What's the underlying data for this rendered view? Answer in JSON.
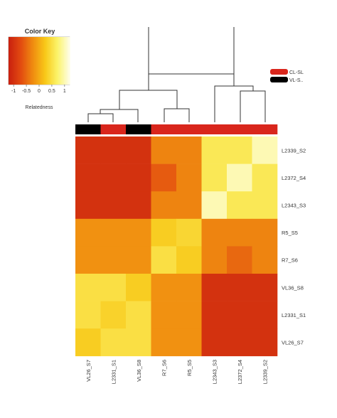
{
  "color_key": {
    "title": "Color Key",
    "xlabel": "Relatedness",
    "ticks": [
      "-1",
      "-0.5",
      "0",
      "0.5",
      "1"
    ],
    "ticks_values": [
      -1,
      -0.5,
      0,
      0.5,
      1
    ],
    "range": [
      -1.2,
      1.2
    ],
    "colors": [
      "#c8200f",
      "#e24a10",
      "#f08c10",
      "#f8c818",
      "#fbf36a",
      "#fefde8"
    ]
  },
  "legend": {
    "position": "top-right",
    "items": [
      {
        "label": "CL-SL",
        "color": "#d9261c"
      },
      {
        "label": "VL-S..",
        "color": "#000000"
      }
    ]
  },
  "chart_data": {
    "type": "heatmap",
    "title": "",
    "xlabel": "",
    "ylabel": "",
    "columns": [
      "VL26_S7",
      "L2331_S1",
      "VL36_S8",
      "R7_S6",
      "R5_S5",
      "L2343_S3",
      "L2372_S4",
      "L2339_S2"
    ],
    "rows": [
      "L2339_S2",
      "L2372_S4",
      "L2343_S3",
      "R5_S5",
      "R7_S6",
      "VL36_S8",
      "L2331_S1",
      "VL26_S7"
    ],
    "column_groups": [
      "VL-S..",
      "CL-SL",
      "VL-S..",
      "CL-SL",
      "CL-SL",
      "CL-SL",
      "CL-SL",
      "CL-SL"
    ],
    "values": [
      [
        -1.0,
        -1.0,
        -1.0,
        -0.3,
        -0.3,
        0.6,
        0.6,
        1.0
      ],
      [
        -1.0,
        -1.0,
        -1.0,
        -0.6,
        -0.3,
        0.6,
        1.0,
        0.6
      ],
      [
        -1.0,
        -1.0,
        -1.0,
        -0.3,
        -0.3,
        1.0,
        0.6,
        0.6
      ],
      [
        -0.2,
        -0.2,
        -0.2,
        0.3,
        0.4,
        -0.3,
        -0.3,
        -0.3
      ],
      [
        -0.2,
        -0.2,
        -0.2,
        0.5,
        0.3,
        -0.3,
        -0.5,
        -0.3
      ],
      [
        0.5,
        0.5,
        0.3,
        -0.2,
        -0.2,
        -1.0,
        -1.0,
        -1.0
      ],
      [
        0.5,
        0.35,
        0.5,
        -0.2,
        -0.2,
        -1.0,
        -1.0,
        -1.0
      ],
      [
        0.3,
        0.5,
        0.5,
        -0.2,
        -0.2,
        -1.0,
        -1.0,
        -1.0
      ]
    ],
    "value_range": [
      -1.2,
      1.2
    ]
  }
}
